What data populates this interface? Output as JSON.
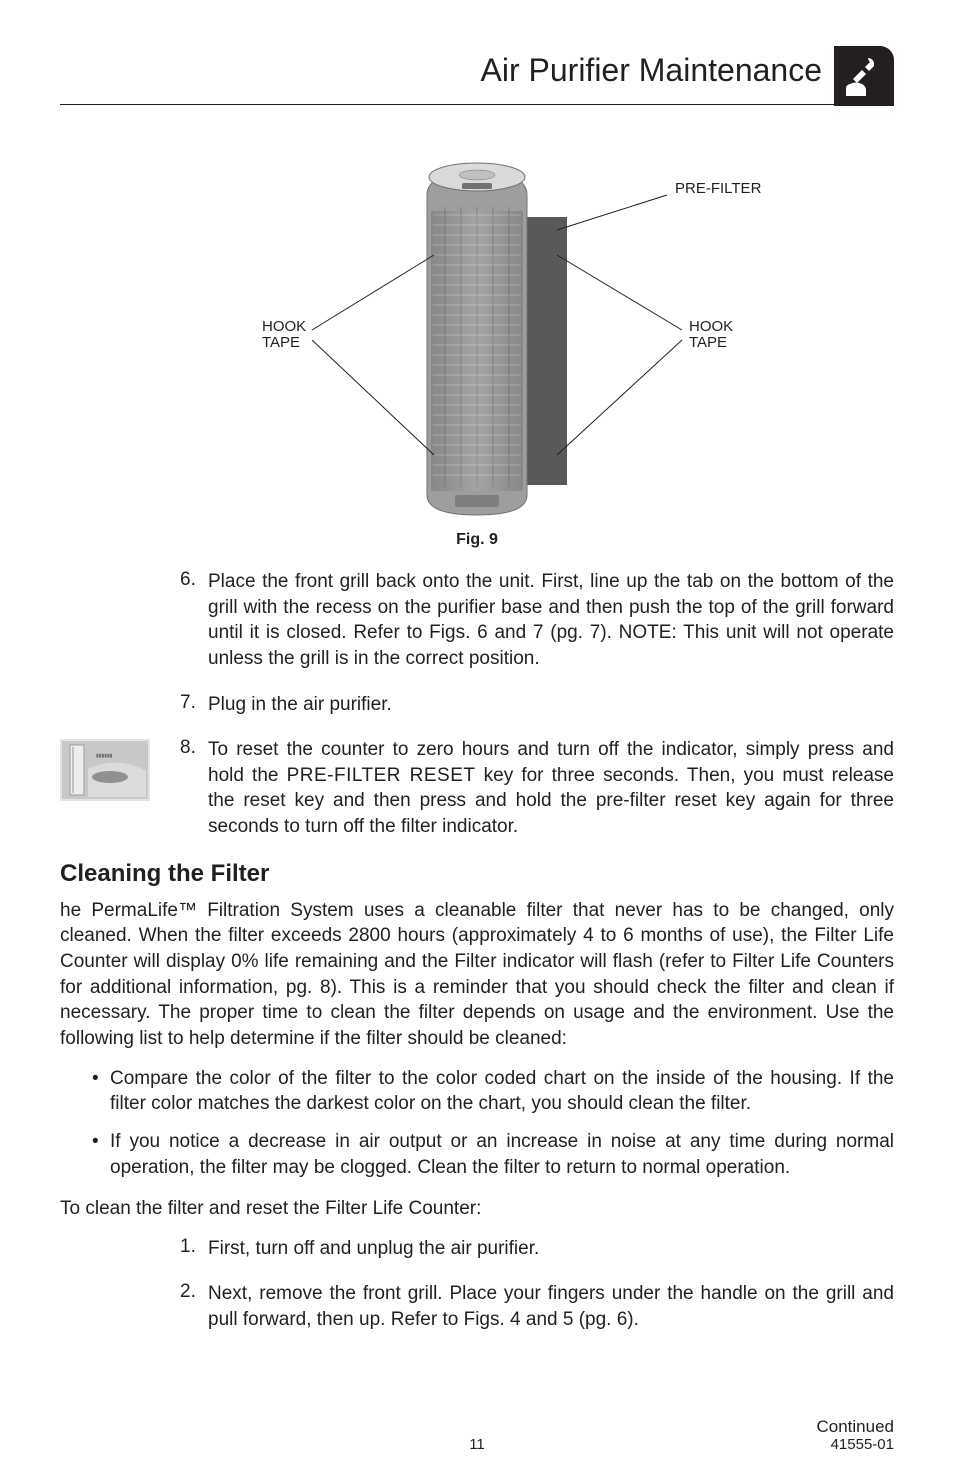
{
  "header": {
    "title": "Air Purifier Maintenance"
  },
  "figure": {
    "caption": "Fig. 9",
    "labels": {
      "preFilter": "PRE-FILTER",
      "hookTapeL1": "HOOK",
      "hookTapeL2": "TAPE",
      "hookTapeR1": "HOOK",
      "hookTapeR2": "TAPE"
    },
    "colors": {
      "device_body": "#9c9e9f",
      "device_body_dark": "#6f7173",
      "top_light": "#d9dadb",
      "prefilter": "#58595b",
      "line": "#231f20",
      "label_text": "#231f20"
    }
  },
  "steps": [
    {
      "n": "6.",
      "text": "Place the front grill back onto the unit. First, line up the tab on the bottom of the grill with the recess on the purifier base and then push the top of the grill forward until it is closed. Refer to Figs. 6 and 7 (pg. 7). NOTE: This unit will not operate unless the grill is in the correct position."
    },
    {
      "n": "7.",
      "text": "Plug in the air purifier."
    },
    {
      "n": "8.",
      "text_pre": "To reset the counter to zero hours and turn off the indicator, simply press and hold the ",
      "text_sc": "PRE-FILTER RESET",
      "text_post": " key for three seconds. Then, you must release the reset key and then press and hold the pre-filter reset key again for three seconds to turn off the filter indicator."
    }
  ],
  "section": {
    "heading": "Cleaning the Filter",
    "para": "he PermaLife™ Filtration System uses a cleanable filter that never has to be changed, only cleaned. When the filter exceeds 2800 hours (approximately 4 to 6 months of use), the Filter Life Counter will display 0% life remaining and the Filter indicator will flash (refer to Filter Life Counters for additional information, pg. 8). This is a reminder that you should check the filter and clean if necessary. The proper time to clean the filter depends on usage and the environment. Use the following list to help determine if the filter should be cleaned:",
    "bullets": [
      "Compare the color of the filter to the color coded chart on the inside of the housing. If the filter color matches the darkest color on the chart, you should clean the filter.",
      "If you notice a decrease in air output or an increase in noise at any time during normal operation, the filter may be clogged. Clean the filter to return to normal operation."
    ],
    "lead": "To clean the filter and reset the Filter Life Counter:",
    "substeps": [
      {
        "n": "1.",
        "text": "First, turn off and unplug the air purifier."
      },
      {
        "n": "2.",
        "text": "Next, remove the front grill.  Place your fingers under the handle on the grill and pull forward, then up. Refer to Figs. 4 and 5 (pg. 6)."
      }
    ]
  },
  "footer": {
    "page": "11",
    "continued": "Continued",
    "partnum": "41555-01"
  }
}
